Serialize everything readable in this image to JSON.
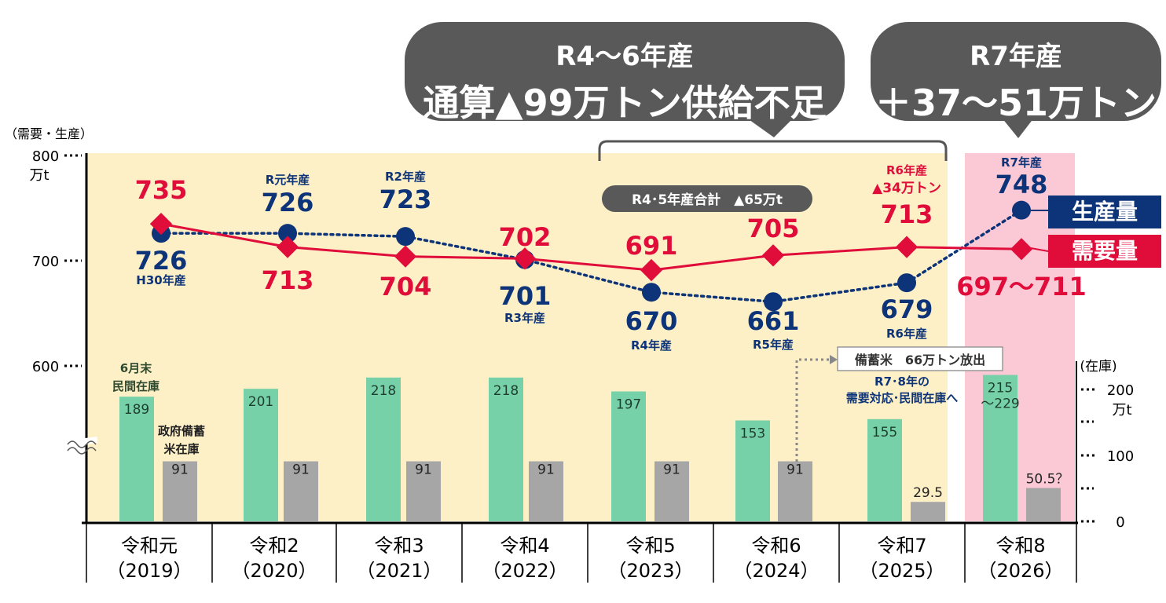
{
  "header": {
    "bubble_left": {
      "line1": "R4～6年産",
      "line2": "通算▲99万トン供給不足"
    },
    "bubble_right": {
      "line1": "R7年産",
      "line2": "＋37～51万トン"
    }
  },
  "axes": {
    "left_unit_top": "（需要・生産）",
    "left_unit": "万t",
    "left_ticks": [
      "800",
      "700",
      "600"
    ],
    "right_unit_top": "(在庫)",
    "right_unit": "万t",
    "right_ticks": [
      "200",
      "100",
      "0"
    ]
  },
  "legend": {
    "production": "生産量",
    "demand": "需要量"
  },
  "annotations": {
    "r45_total": "R4･5年産合計　▲65万t",
    "reserve_release": "備蓄米　66万トン放出",
    "r78_note_line1": "R7･8年の",
    "r78_note_line2": "需要対応･民間在庫へ",
    "june_end_line1": "6月末",
    "june_end_line2": "民間在庫",
    "gov_stock_line1": "政府備蓄",
    "gov_stock_line2": "米在庫",
    "r6_shortage_line1": "R6年産",
    "r6_shortage_line2": "▲34万トン"
  },
  "colors": {
    "background_band": "#fdefc6",
    "highlight_band": "#fbc9d6",
    "production": "#0d3478",
    "demand": "#e00d3b",
    "private_stock": "#76d1a8",
    "gov_stock": "#a6a6a6",
    "bubble": "#595959"
  },
  "chart_data": {
    "type": "line+bar",
    "categories": [
      {
        "line1": "令和元",
        "line2": "（2019）"
      },
      {
        "line1": "令和2",
        "line2": "（2020）"
      },
      {
        "line1": "令和3",
        "line2": "（2021）"
      },
      {
        "line1": "令和4",
        "line2": "（2022）"
      },
      {
        "line1": "令和5",
        "line2": "（2023）"
      },
      {
        "line1": "令和6",
        "line2": "（2024）"
      },
      {
        "line1": "令和7",
        "line2": "（2025）"
      },
      {
        "line1": "令和8",
        "line2": "（2026）"
      }
    ],
    "left_axis": {
      "ticks": [
        800,
        700,
        600
      ]
    },
    "right_axis": {
      "ticks": [
        0,
        100,
        200
      ]
    },
    "series": [
      {
        "name": "生産量",
        "style": "dotted",
        "values": [
          726,
          726,
          723,
          701,
          670,
          661,
          679,
          748
        ],
        "labels": [
          "726",
          "726",
          "723",
          "701",
          "670",
          "661",
          "679",
          "748"
        ],
        "sublabels": [
          "H30年産",
          "R元年産",
          "R2年産",
          "R3年産",
          "R4年産",
          "R5年産",
          "R6年産",
          "R7年産"
        ]
      },
      {
        "name": "需要量",
        "style": "solid",
        "values": [
          735,
          713,
          704,
          702,
          691,
          705,
          713,
          711
        ],
        "labels": [
          "735",
          "713",
          "704",
          "702",
          "691",
          "705",
          "713",
          "697～711"
        ]
      },
      {
        "name": "民間在庫",
        "values": [
          189,
          201,
          218,
          218,
          197,
          153,
          155,
          222
        ],
        "labels": [
          "189",
          "201",
          "218",
          "218",
          "197",
          "153",
          "155",
          "215\n～229"
        ]
      },
      {
        "name": "政府備蓄米在庫",
        "values": [
          91,
          91,
          91,
          91,
          91,
          91,
          29.5,
          50.5
        ],
        "labels": [
          "91",
          "91",
          "91",
          "91",
          "91",
          "91",
          "29.5",
          "50.5？"
        ]
      }
    ]
  }
}
